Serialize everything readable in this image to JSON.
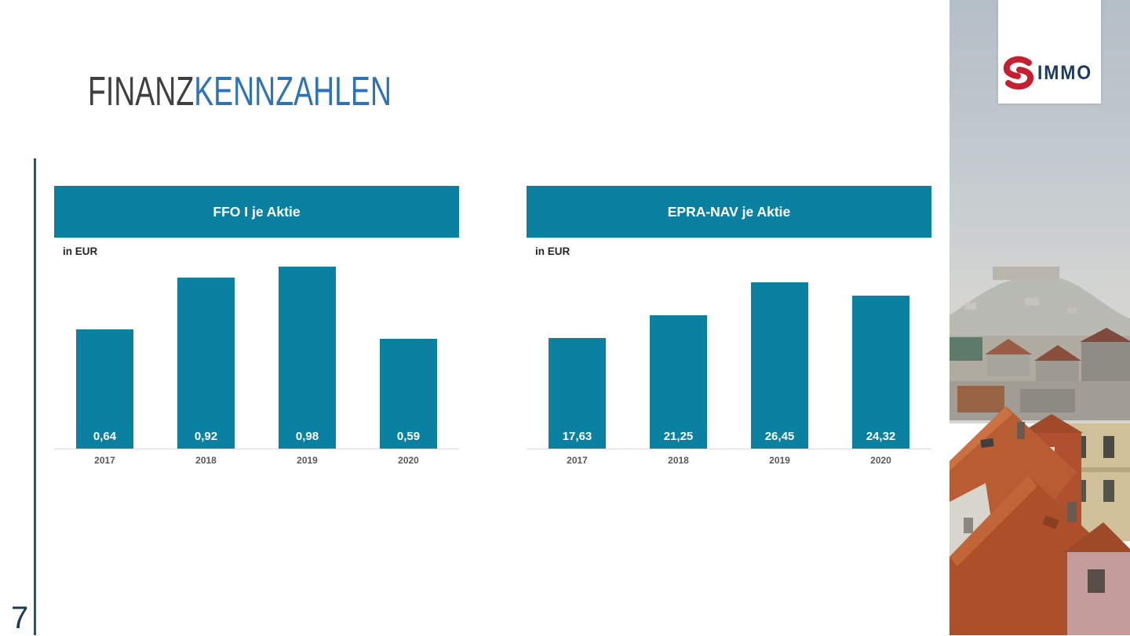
{
  "slide": {
    "title_part1": "FINANZ",
    "title_part2": "KENNZAHLEN",
    "page_number": "7"
  },
  "logo": {
    "symbol": "s-swirl",
    "text": "IMMO"
  },
  "colors": {
    "accent_teal": "#0b81a2",
    "title_blue": "#2e74b5",
    "title_gray": "#3f3f3f",
    "accent_line_teal": "#1e5a78",
    "page_number_navy": "#1d3a55",
    "logo_red": "#c42032",
    "logo_navy": "#1e3a5f",
    "axis_line_gray": "#d9d9d9",
    "axis_label_gray": "#595959"
  },
  "chart_data": [
    {
      "type": "bar",
      "title": "FFO I je Aktie",
      "unit_label": "in EUR",
      "categories": [
        "2017",
        "2018",
        "2019",
        "2020"
      ],
      "values": [
        0.64,
        0.92,
        0.98,
        0.59
      ],
      "value_labels": [
        "0,64",
        "0,92",
        "0,98",
        "0,59"
      ],
      "ylim": [
        0,
        1.0
      ],
      "grid": false,
      "legend": false,
      "bar_color": "#0b81a2",
      "value_label_position": "inside-bottom"
    },
    {
      "type": "bar",
      "title": "EPRA-NAV je Aktie",
      "unit_label": "in EUR",
      "categories": [
        "2017",
        "2018",
        "2019",
        "2020"
      ],
      "values": [
        17.63,
        21.25,
        26.45,
        24.32
      ],
      "value_labels": [
        "17,63",
        "21,25",
        "26,45",
        "24,32"
      ],
      "ylim": [
        0,
        28
      ],
      "grid": false,
      "legend": false,
      "bar_color": "#0b81a2",
      "value_label_position": "inside-bottom"
    }
  ]
}
